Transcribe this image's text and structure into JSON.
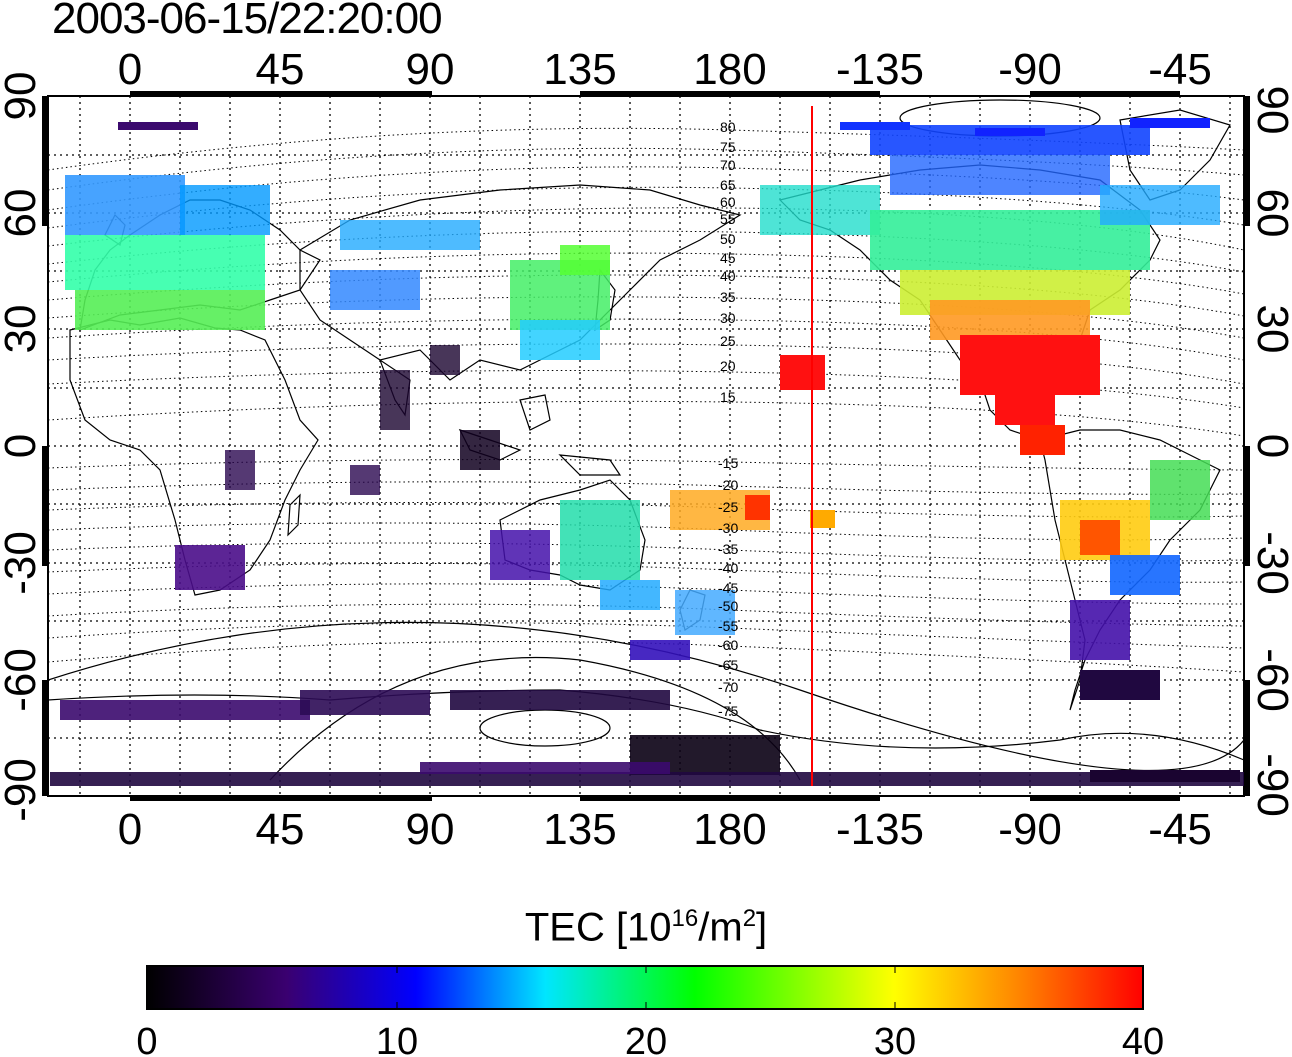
{
  "title": "2003-06-15/22:20:00",
  "lon_ticks": [
    "0",
    "45",
    "90",
    "135",
    "180",
    "-135",
    "-90",
    "-45"
  ],
  "lat_ticks": [
    "90",
    "60",
    "30",
    "0",
    "-30",
    "-60",
    "-90"
  ],
  "lat_contour_labels_north": [
    "80",
    "75",
    "70",
    "65",
    "60",
    "55",
    "50",
    "45",
    "40",
    "35",
    "30",
    "25",
    "20",
    "15"
  ],
  "lat_contour_labels_south": [
    "-15",
    "-20",
    "-25",
    "-30",
    "-35",
    "-40",
    "-45",
    "-50",
    "-55",
    "-60",
    "-65",
    "-70",
    "-75"
  ],
  "colorbar": {
    "title_prefix": "TEC  [10",
    "title_sup1": "16",
    "title_mid": "/m",
    "title_sup2": "2",
    "title_suffix": "]",
    "ticks": [
      "0",
      "10",
      "20",
      "30",
      "40"
    ],
    "range": [
      0,
      40
    ],
    "stops": [
      "#000000",
      "#3a0070",
      "#0000ff",
      "#00e6ff",
      "#00ff00",
      "#ffff00",
      "#ff0000"
    ]
  },
  "colors": {
    "high_tec": "#ff0000",
    "marker_line": "#ff0000"
  }
}
